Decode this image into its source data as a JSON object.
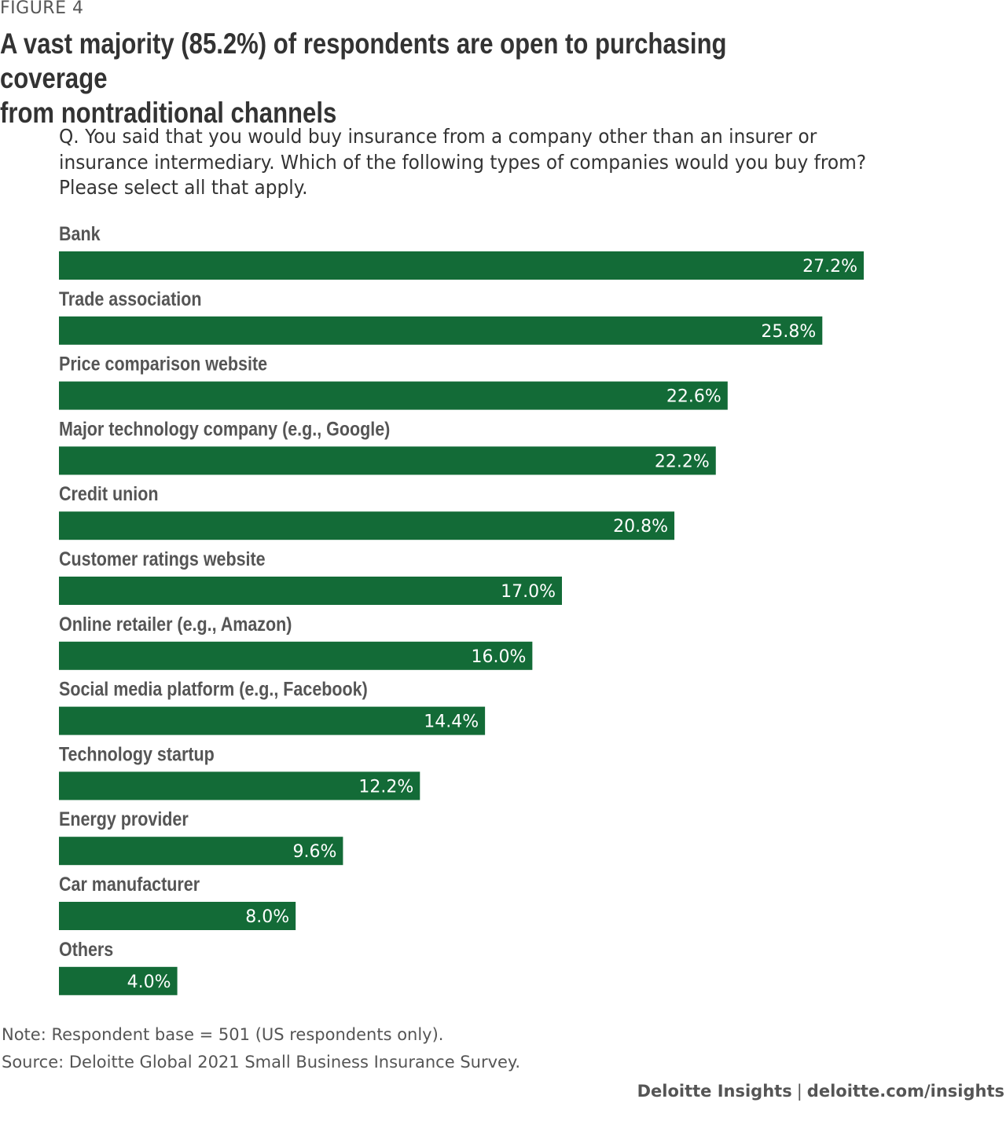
{
  "figure_label": "FIGURE 4",
  "title": "A vast majority (85.2%) of respondents are open to purchasing coverage\nfrom nontraditional channels",
  "question": "Q. You said that you would buy insurance from a company other than an insurer or insurance intermediary. Which of the following types of companies would you buy from? Please select all that apply.",
  "note": "Note: Respondent base = 501 (US respondents only).",
  "source": "Source: Deloitte Global 2021 Small Business Insurance Survey.",
  "footer": {
    "brand": "Deloitte Insights",
    "separator": "|",
    "url": "deloitte.com/insights"
  },
  "colors": {
    "bar": "#136b37",
    "label": "#555555",
    "value_text": "#ffffff"
  },
  "chart_data": {
    "type": "bar",
    "orientation": "horizontal",
    "categories": [
      "Bank",
      "Trade association",
      "Price comparison website",
      "Major technology company (e.g., Google)",
      "Credit union",
      "Customer ratings website",
      "Online retailer (e.g., Amazon)",
      "Social media platform (e.g., Facebook)",
      "Technology startup",
      "Energy provider",
      "Car manufacturer",
      "Others"
    ],
    "values": [
      27.2,
      25.8,
      22.6,
      22.2,
      20.8,
      17.0,
      16.0,
      14.4,
      12.2,
      9.6,
      8.0,
      4.0
    ],
    "value_labels": [
      "27.2%",
      "25.8%",
      "22.6%",
      "22.2%",
      "20.8%",
      "17.0%",
      "16.0%",
      "14.4%",
      "12.2%",
      "9.6%",
      "8.0%",
      "4.0%"
    ],
    "unit": "%",
    "grid": false,
    "axes_visible": false
  }
}
